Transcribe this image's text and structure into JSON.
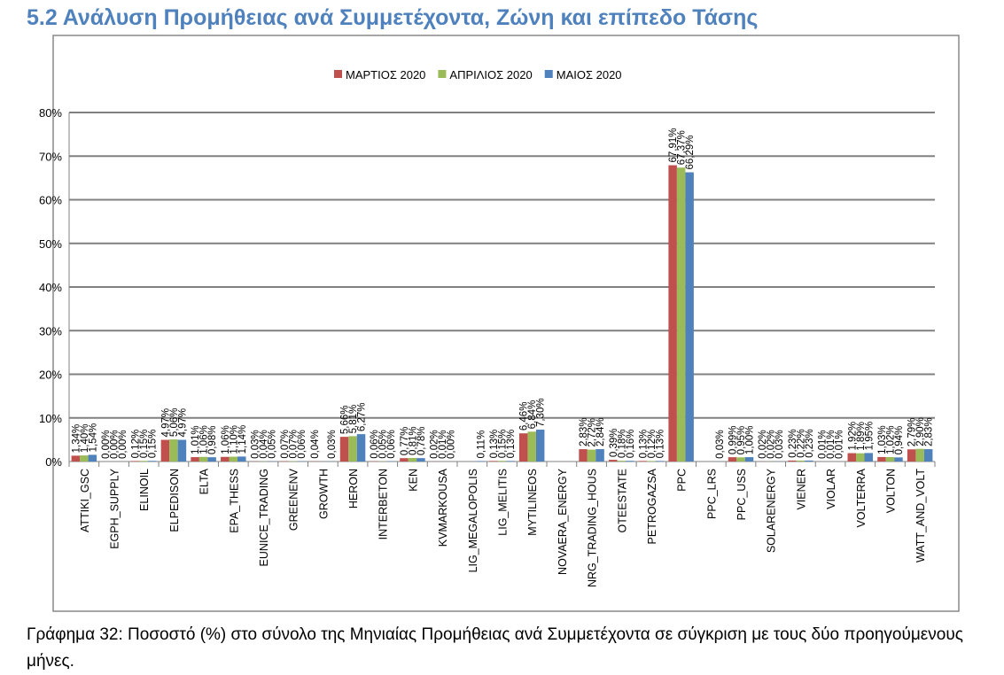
{
  "document": {
    "section_title": "5.2 Ανάλυση Προμήθειας ανά Συμμετέχοντα, Ζώνη και επίπεδο Τάσης",
    "caption": "Γράφημα 32: Ποσοστό (%) στο σύνολο της Μηνιαίας Προμήθειας ανά Συμμετέχοντα σε σύγκριση με τους δύο προηγούμενους μήνες."
  },
  "chart_data": {
    "type": "bar",
    "title": "",
    "xlabel": "",
    "ylabel": "",
    "ylim": [
      0,
      80
    ],
    "grid": true,
    "legend": "top-center",
    "yticks": [
      "0%",
      "10%",
      "20%",
      "30%",
      "40%",
      "50%",
      "60%",
      "70%",
      "80%"
    ],
    "categories": [
      "ATTIKI_GSC",
      "EGPH_SUPPLY",
      "ELINOIL",
      "ELPEDISON",
      "ELTA",
      "EPA_THESS",
      "EUNICE_TRADING",
      "GREENENV",
      "GROWTH",
      "HERON",
      "INTERBETON",
      "KEN",
      "KVMARKOUSA",
      "LIG_MEGALOPOLIS",
      "LIG_MELITIS",
      "MYTILINEOS",
      "NOVAERA_ENERGY",
      "NRG_TRADING_HOUS",
      "OTEESTATE",
      "PETROGAZSA",
      "PPC",
      "PPC_LRS",
      "PPC_USS",
      "SOLARENERGY",
      "VIENER",
      "VIOLAR",
      "VOLTERRA",
      "VOLTON",
      "WATT_AND_VOLT"
    ],
    "series": [
      {
        "name": "ΜΑΡΤΙΟΣ 2020",
        "color": "#c0504d",
        "values": [
          1.34,
          0,
          0.12,
          4.97,
          1.01,
          1.06,
          0.03,
          0.07,
          0.04,
          5.66,
          0.06,
          0.77,
          0.02,
          null,
          0.13,
          6.46,
          null,
          2.83,
          0.39,
          0.13,
          67.91,
          null,
          0.99,
          0.02,
          0.23,
          0.01,
          1.92,
          1.03,
          2.79
        ]
      },
      {
        "name": "ΑΠΡΙΛΙΟΣ 2020",
        "color": "#9bbb59",
        "values": [
          1.4,
          0,
          0.15,
          5.06,
          1.06,
          1.1,
          0.04,
          0.07,
          null,
          5.81,
          0.05,
          0.81,
          0.01,
          null,
          0.15,
          6.84,
          null,
          2.72,
          0.18,
          0.12,
          67.37,
          null,
          0.95,
          0.02,
          0.22,
          0.01,
          1.89,
          1.02,
          2.9
        ]
      },
      {
        "name": "ΜΑΙΟΣ 2020",
        "color": "#4f81bd",
        "values": [
          1.54,
          0,
          0.15,
          4.97,
          0.98,
          1.14,
          0.05,
          0.06,
          0.03,
          6.27,
          0.06,
          0.78,
          0,
          0.11,
          0.13,
          7.3,
          null,
          2.84,
          0.16,
          0.13,
          66.29,
          0.03,
          1.0,
          0.03,
          0.23,
          0.01,
          1.95,
          0.94,
          2.83
        ]
      }
    ]
  }
}
